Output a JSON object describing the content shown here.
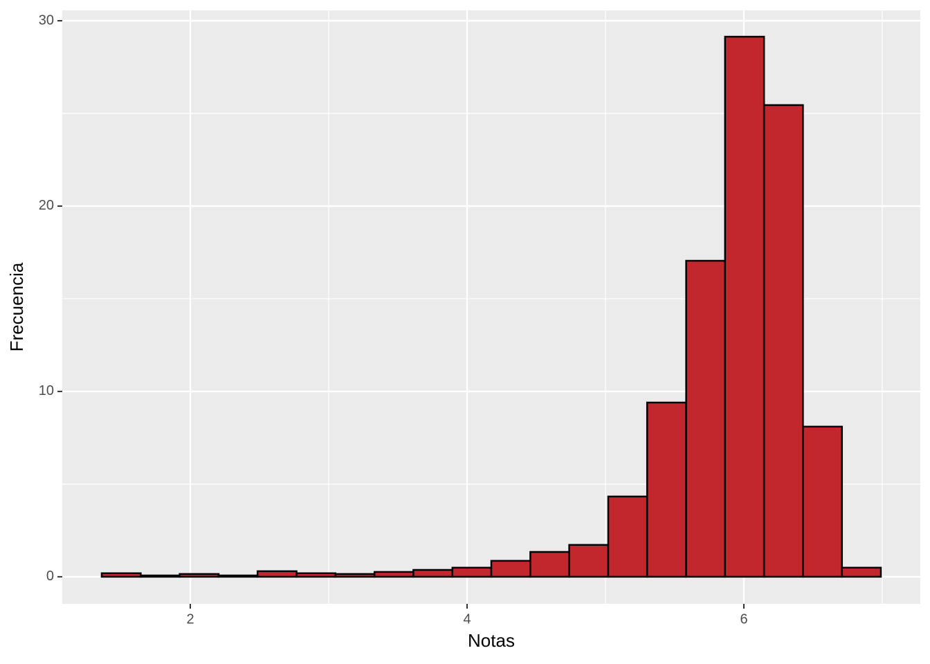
{
  "chart_data": {
    "type": "histogram",
    "x_label": "Notas",
    "y_label": "Frecuencia",
    "bins": [
      1.36,
      1.642,
      1.923,
      2.205,
      2.486,
      2.768,
      3.049,
      3.331,
      3.612,
      3.894,
      4.175,
      4.457,
      4.738,
      5.02,
      5.301,
      5.583,
      5.864,
      6.146,
      6.427,
      6.709,
      6.99
    ],
    "values": [
      0.19,
      0.07,
      0.15,
      0.07,
      0.3,
      0.19,
      0.15,
      0.26,
      0.37,
      0.49,
      0.86,
      1.34,
      1.72,
      4.33,
      9.4,
      17.05,
      29.14,
      25.45,
      8.1,
      0.49
    ],
    "color": "#c1272d",
    "edge_color": "#000000",
    "xlim": [
      1.075,
      7.275
    ],
    "ylim": [
      -1.46,
      30.56
    ],
    "xticks": [
      2,
      4,
      6
    ],
    "yticks": [
      0,
      10,
      20,
      30
    ],
    "x_minor_ticks": [
      3,
      5,
      7
    ],
    "y_minor_ticks": [
      5,
      15,
      25
    ],
    "grid": true
  }
}
